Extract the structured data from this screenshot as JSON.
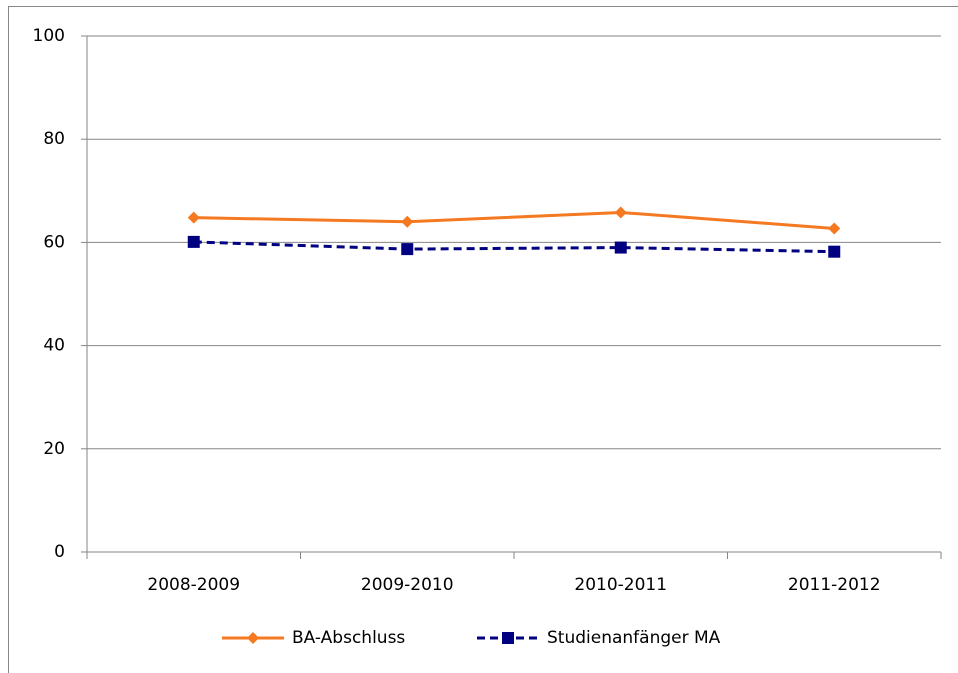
{
  "chart_data": {
    "type": "line",
    "categories": [
      "2008-2009",
      "2009-2010",
      "2010-2011",
      "2011-2012"
    ],
    "series": [
      {
        "name": "BA-Abschluss",
        "color": "#f47920",
        "marker": "diamond",
        "line_style": "solid",
        "values": [
          64.8,
          64.0,
          65.8,
          62.7
        ]
      },
      {
        "name": "Studienanfänger MA",
        "color": "#000080",
        "marker": "square",
        "line_style": "dashed",
        "values": [
          60.1,
          58.7,
          59.0,
          58.2
        ]
      }
    ],
    "ylim": [
      0,
      100
    ],
    "yticks": [
      0,
      20,
      40,
      60,
      80,
      100
    ],
    "grid": true,
    "legend": "bottom"
  }
}
